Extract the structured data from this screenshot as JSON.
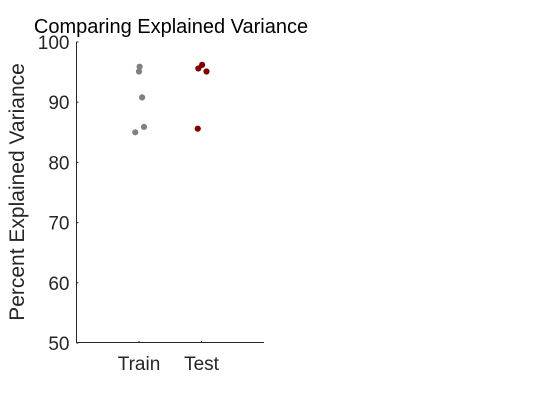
{
  "chart_data": {
    "type": "scatter",
    "title": "Comparing Explained Variance",
    "xlabel": "",
    "ylabel": "Percent Explained Variance",
    "categories": [
      "Train",
      "Test"
    ],
    "ylim": [
      50,
      100
    ],
    "yticks": [
      50,
      60,
      70,
      80,
      90,
      100
    ],
    "grid": false,
    "legend": "none",
    "series": [
      {
        "category": "Train",
        "color": "#808080",
        "points": [
          {
            "x": 1.01,
            "y": 95.9
          },
          {
            "x": 1.0,
            "y": 95.1
          },
          {
            "x": 1.05,
            "y": 90.8
          },
          {
            "x": 1.08,
            "y": 85.9
          },
          {
            "x": 0.94,
            "y": 85.0
          }
        ]
      },
      {
        "category": "Test",
        "color": "#800000",
        "points": [
          {
            "x": 2.01,
            "y": 96.2
          },
          {
            "x": 1.95,
            "y": 95.6
          },
          {
            "x": 2.08,
            "y": 95.1
          },
          {
            "x": 1.94,
            "y": 85.6
          }
        ]
      }
    ]
  }
}
